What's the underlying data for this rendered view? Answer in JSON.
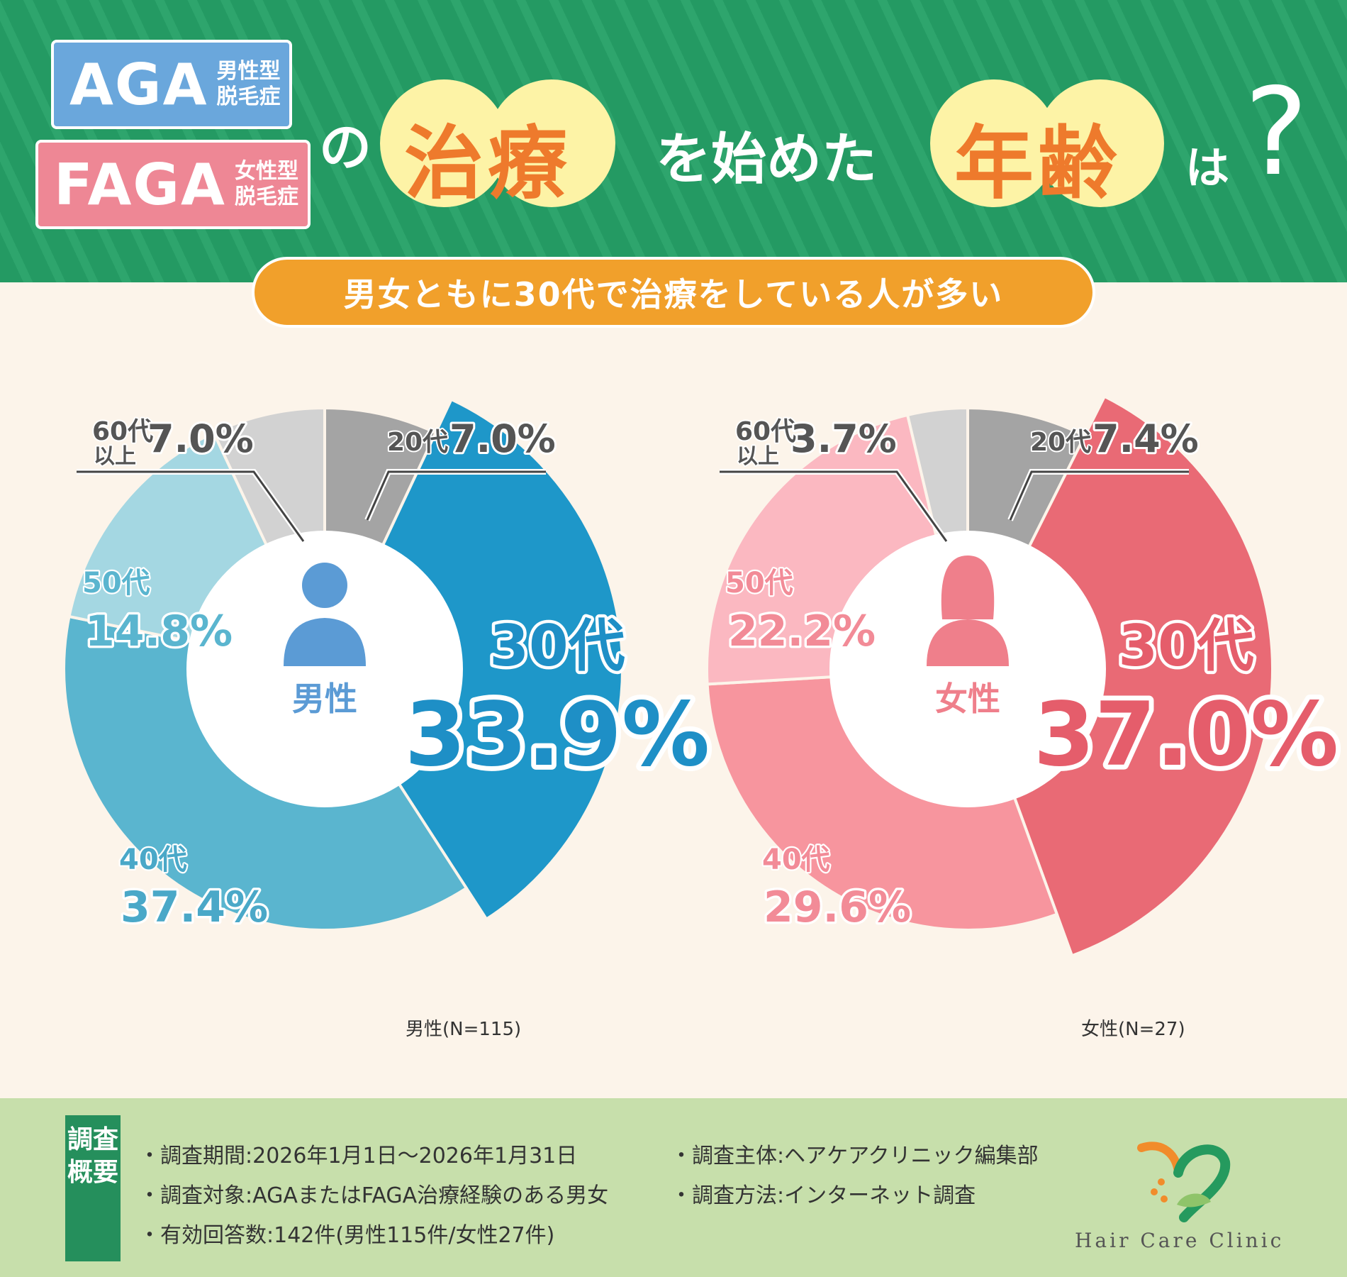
{
  "header": {
    "aga": {
      "abbr": "AGA",
      "line1": "男性型",
      "line2": "脱毛症"
    },
    "faga": {
      "abbr": "FAGA",
      "line1": "女性型",
      "line2": "脱毛症"
    },
    "title_no": "の",
    "title_hl1": "治療",
    "title_mid": "を始めた",
    "title_hl2": "年齢",
    "title_ha": "は",
    "title_q": "?",
    "subtitle": "男女ともに30代で治療をしている人が多い"
  },
  "chart_data": [
    {
      "type": "pie",
      "title": "男性",
      "n_label": "男性(N=115)",
      "categories": [
        "20代",
        "30代",
        "40代",
        "50代",
        "60代以上"
      ],
      "values": [
        7.0,
        33.9,
        37.4,
        14.8,
        7.0
      ],
      "labels": [
        {
          "cat": "20代",
          "pct": "7.0%"
        },
        {
          "cat": "30代",
          "pct": "33.9%"
        },
        {
          "cat": "40代",
          "pct": "37.4%"
        },
        {
          "cat": "50代",
          "pct": "14.8%"
        },
        {
          "cat1": "60代",
          "cat2": "以上",
          "pct": "7.0%"
        }
      ],
      "colors": [
        "#a4a4a4",
        "#1e97c9",
        "#5ab5cf",
        "#a4d7e2",
        "#d2d2d2"
      ],
      "accent": "#1e8fc6",
      "center_color": "#5b9bd5"
    },
    {
      "type": "pie",
      "title": "女性",
      "n_label": "女性(N=27)",
      "categories": [
        "20代",
        "30代",
        "40代",
        "50代",
        "60代以上"
      ],
      "values": [
        7.4,
        37.0,
        29.6,
        22.2,
        3.7
      ],
      "labels": [
        {
          "cat": "20代",
          "pct": "7.4%"
        },
        {
          "cat": "30代",
          "pct": "37.0%"
        },
        {
          "cat": "40代",
          "pct": "29.6%"
        },
        {
          "cat": "50代",
          "pct": "22.2%"
        },
        {
          "cat1": "60代",
          "cat2": "以上",
          "pct": "3.7%"
        }
      ],
      "colors": [
        "#a4a4a4",
        "#e96a75",
        "#f7959e",
        "#fbb8c1",
        "#d2d2d2"
      ],
      "accent": "#e55d6b",
      "center_color": "#ef7f8b"
    }
  ],
  "survey": {
    "tag": "調査概要",
    "period": "・調査期間:2026年1月1日〜2026年1月31日",
    "target": "・調査対象:AGAまたはFAGA治療経験のある男女",
    "responses": "・有効回答数:142件(男性115件/女性27件)",
    "organizer": "・調査主体:ヘアケアクリニック編集部",
    "method": "・調査方法:インターネット調査"
  },
  "logo": {
    "text": "Hair Care Clinic"
  },
  "colors": {
    "header_green": "#249a63",
    "cream": "#fcf4ea",
    "orange": "#f1a02b",
    "footer_green": "#c7dfab"
  }
}
